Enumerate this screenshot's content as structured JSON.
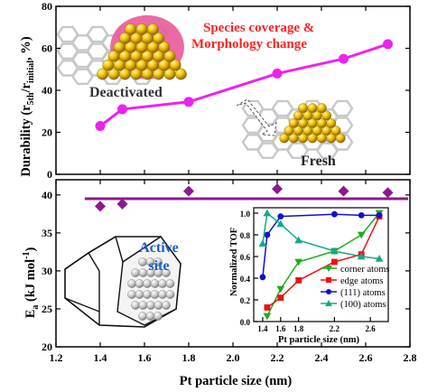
{
  "chart_data": [
    {
      "type": "line",
      "x": [
        1.4,
        1.5,
        1.8,
        2.2,
        2.5,
        2.7
      ],
      "series": [
        {
          "values": [
            23,
            31,
            34.5,
            48,
            55,
            62
          ]
        }
      ],
      "ylabel_main": "Durability (r",
      "ylabel_sub1": "5th",
      "ylabel_mid": "/r",
      "ylabel_sub2": "initial",
      "ylabel_end": ", %)",
      "xlim": [
        1.2,
        2.8
      ],
      "ylim": [
        0,
        80
      ],
      "yticks": [
        "0",
        "20",
        "40",
        "60",
        "80"
      ],
      "annotations": {
        "coverage_line1": "Species coverage &",
        "coverage_line2": "Morphology change",
        "deactivated": "Deactivated",
        "fresh": "Fresh"
      },
      "color": "#ee22ee"
    },
    {
      "type": "scatter",
      "x": [
        1.4,
        1.5,
        1.8,
        2.2,
        2.5,
        2.7
      ],
      "values": [
        38.5,
        38.8,
        40.5,
        40.8,
        40.5,
        40.3
      ],
      "reference_line": 39.5,
      "ylabel_main": "E",
      "ylabel_sub": "a",
      "ylabel_end": " (kJ mol",
      "ylabel_sup": "-1",
      "ylabel_close": ")",
      "xlabel": "Pt particle size (nm)",
      "xlim": [
        1.2,
        2.8
      ],
      "ylim": [
        20,
        42
      ],
      "xticks": [
        "1.2",
        "1.4",
        "1.6",
        "1.8",
        "2.0",
        "2.2",
        "2.4",
        "2.6",
        "2.8"
      ],
      "yticks": [
        "20",
        "25",
        "30",
        "35",
        "40"
      ],
      "annotations": {
        "active_site_line1": "Active",
        "active_site_line2": "site"
      },
      "color": "#8b1a8b"
    },
    {
      "type": "line",
      "x": [
        1.4,
        1.45,
        1.6,
        1.8,
        2.2,
        2.5,
        2.7
      ],
      "series": [
        {
          "name": "corner atoms",
          "color": "#22aa22",
          "marker": "triangle-down",
          "x": [
            1.45,
            1.6,
            1.8,
            2.2,
            2.5,
            2.7
          ],
          "values": [
            0.05,
            0.3,
            0.55,
            0.65,
            0.8,
            1.0
          ]
        },
        {
          "name": "edge atoms",
          "color": "#ee1111",
          "marker": "square",
          "x": [
            1.45,
            1.6,
            1.8,
            2.2,
            2.5,
            2.7
          ],
          "values": [
            0.13,
            0.22,
            0.38,
            0.55,
            0.62,
            0.97
          ]
        },
        {
          "name": "(111) atoms",
          "color": "#1111cc",
          "marker": "circle",
          "x": [
            1.4,
            1.45,
            1.6,
            2.2,
            2.5,
            2.7
          ],
          "values": [
            0.41,
            0.8,
            0.97,
            0.99,
            0.98,
            0.98
          ]
        },
        {
          "name": "(100) atoms",
          "color": "#11aa88",
          "marker": "triangle-up",
          "x": [
            1.4,
            1.45,
            1.6,
            1.8,
            2.2,
            2.5,
            2.7
          ],
          "values": [
            0.72,
            1.0,
            0.9,
            0.75,
            0.65,
            0.6,
            0.58
          ]
        }
      ],
      "xlabel": "Pt particle size (nm)",
      "ylabel": "Normalized TOF",
      "xlim": [
        1.2,
        2.8
      ],
      "ylim": [
        0.0,
        1.05
      ],
      "xticks": [
        "1.4",
        "1.6",
        "1.8",
        "2.2",
        "2.6"
      ],
      "yticks": [
        "0.0",
        "0.2",
        "0.4",
        "0.6",
        "0.8",
        "1.0"
      ],
      "legend": "bottom-right"
    }
  ]
}
